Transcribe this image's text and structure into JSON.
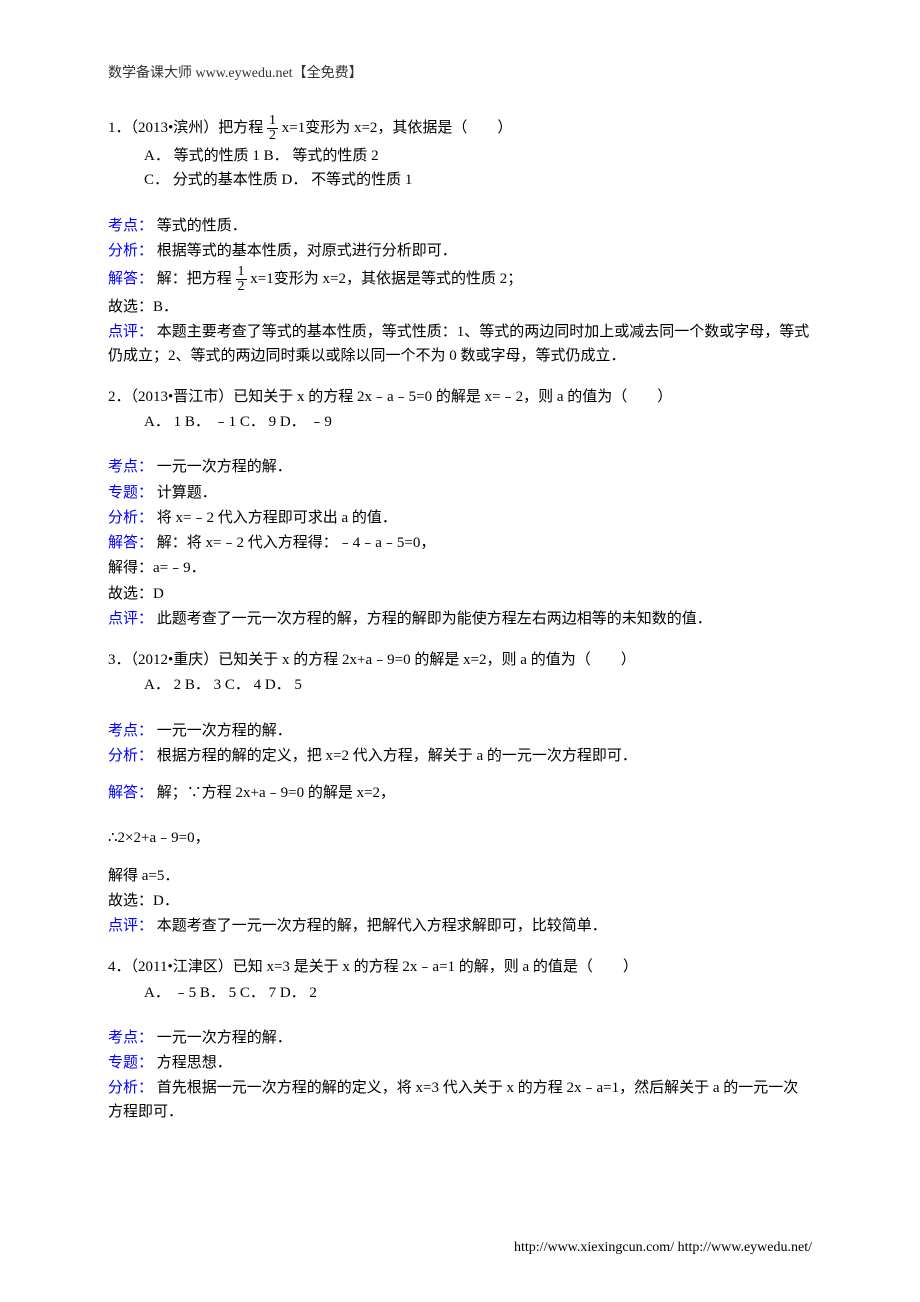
{
  "header": {
    "text": "数学备课大师  www.eywedu.net【全免费】"
  },
  "q1": {
    "stem_a": "1．（2013•滨州）把方程",
    "frac_num": "1",
    "frac_den": "2",
    "stem_b": "x=1变形为 x=2，其依据是（　　）",
    "opt_line1": "A．  等式的性质 1 B．  等式的性质 2",
    "opt_line2": "C．  分式的基本性质  D．  不等式的性质 1",
    "kaodian_label": "考点：",
    "kaodian_text": "  等式的性质．",
    "fenxi_label": "分析：",
    "fenxi_text": "  根据等式的基本性质，对原式进行分析即可．",
    "jieda_label": "解答：",
    "jieda_a": "  解：把方程",
    "jieda_b": "x=1变形为 x=2，其依据是等式的性质 2；",
    "guxuan": "故选：B．",
    "dianping_label": "点评：",
    "dianping_text": "  本题主要考查了等式的基本性质，等式性质：1、等式的两边同时加上或减去同一个数或字母，等式仍成立；2、等式的两边同时乘以或除以同一个不为 0 数或字母，等式仍成立．",
    "dianping_line2": ""
  },
  "q2": {
    "stem": "2．（2013•晋江市）已知关于 x 的方程 2x﹣a﹣5=0 的解是 x=﹣2，则 a 的值为（　　）",
    "opt_line1": "A．  1 B．  ﹣1 C．  9 D．  ﹣9",
    "kaodian_label": "考点：",
    "kaodian_text": "  一元一次方程的解．",
    "zhuanti_label": "专题：",
    "zhuanti_text": "  计算题．",
    "fenxi_label": "分析：",
    "fenxi_text": "  将 x=﹣2 代入方程即可求出 a 的值．",
    "jieda_label": "解答：",
    "jieda_text": "  解：将 x=﹣2 代入方程得：﹣4﹣a﹣5=0，",
    "jieda_line2": "解得：a=﹣9．",
    "guxuan": "故选：D",
    "dianping_label": "点评：",
    "dianping_text": "  此题考查了一元一次方程的解，方程的解即为能使方程左右两边相等的未知数的值．"
  },
  "q3": {
    "stem": "3．（2012•重庆）已知关于 x 的方程 2x+a﹣9=0 的解是 x=2，则 a 的值为（　　）",
    "opt_line1": "A．  2 B．  3 C．  4 D．  5",
    "kaodian_label": "考点：",
    "kaodian_text": "  一元一次方程的解．",
    "fenxi_label": "分析：",
    "fenxi_text": "  根据方程的解的定义，把 x=2 代入方程，解关于 a 的一元一次方程即可．",
    "jieda_label": "解答：",
    "jieda_text": "  解；∵方程 2x+a﹣9=0 的解是 x=2，",
    "calc": "∴2×2+a﹣9=0，",
    "jieda_line2": "解得 a=5．",
    "guxuan": "故选：D．",
    "dianping_label": "点评：",
    "dianping_text": "  本题考查了一元一次方程的解，把解代入方程求解即可，比较简单．"
  },
  "q4": {
    "stem": "4．（2011•江津区）已知 x=3 是关于 x 的方程 2x﹣a=1 的解，则 a 的值是（　　）",
    "opt_line1": "A．  ﹣5 B．  5 C．  7 D．  2",
    "kaodian_label": "考点：",
    "kaodian_text": "  一元一次方程的解．",
    "zhuanti_label": "专题：",
    "zhuanti_text": "  方程思想．",
    "fenxi_label": "分析：",
    "fenxi_text": "  首先根据一元一次方程的解的定义，将 x=3 代入关于 x 的方程 2x﹣a=1，然后解关于 a 的一元一次方程即可．",
    "fenxi_line2": ""
  },
  "footer": {
    "text": "http://www.xiexingcun.com/ http://www.eywedu.net/"
  }
}
